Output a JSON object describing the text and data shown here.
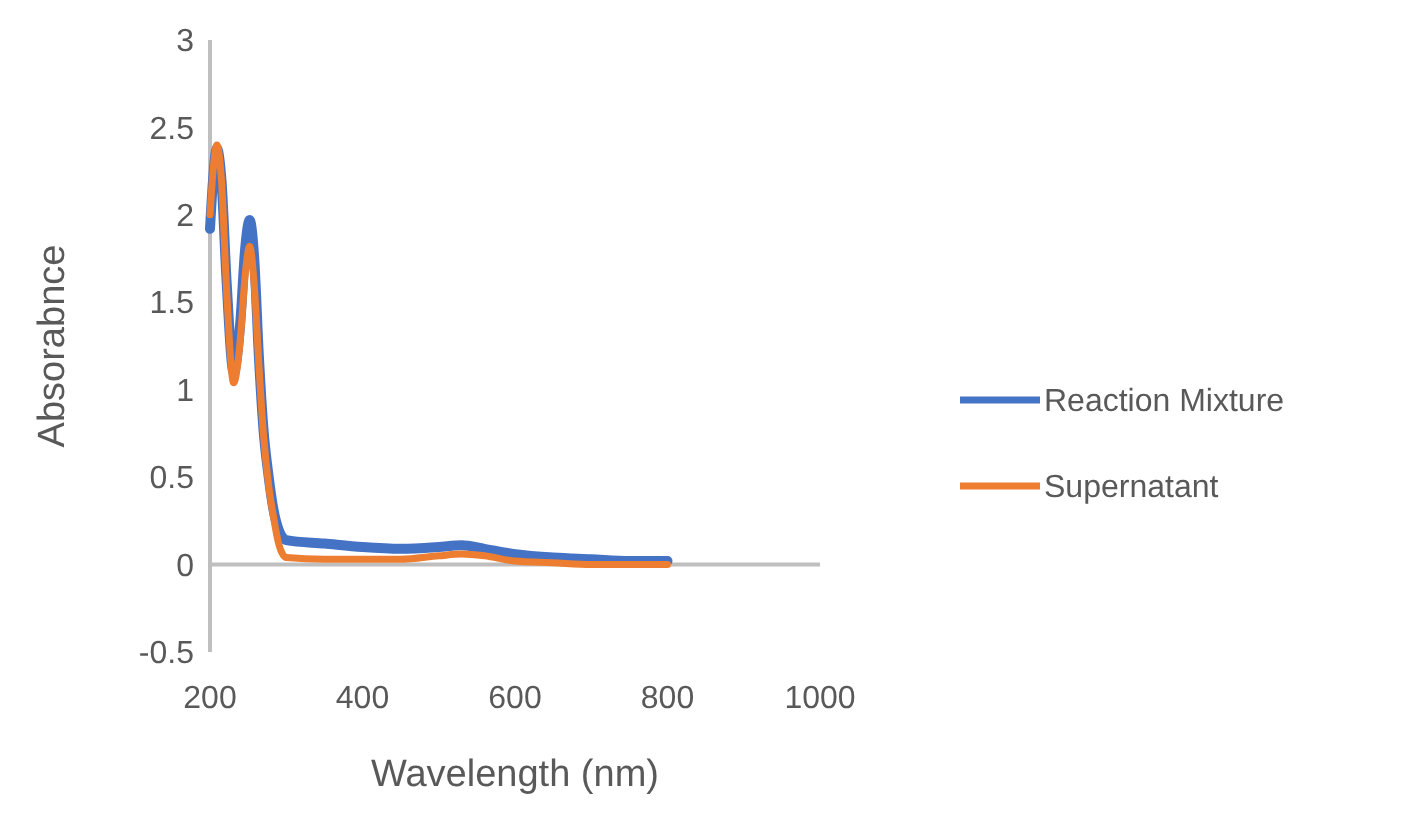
{
  "chart_data": {
    "type": "line",
    "xlabel": "Wavelength (nm)",
    "ylabel": "Absorabnce",
    "xlim": [
      200,
      1000
    ],
    "ylim": [
      -0.5,
      3
    ],
    "xticks": [
      200,
      400,
      600,
      800,
      1000
    ],
    "yticks": [
      -0.5,
      0,
      0.5,
      1,
      1.5,
      2,
      2.5,
      3
    ],
    "legend": "right",
    "marker": "none",
    "line_style": "solid",
    "series": [
      {
        "name": "Reaction Mixture",
        "color": "#4472c4",
        "x": [
          200,
          204,
          209,
          215,
          222,
          231,
          240,
          246,
          252,
          258,
          264,
          270,
          277,
          283,
          290,
          300,
          350,
          400,
          450,
          500,
          530,
          560,
          600,
          650,
          700,
          750,
          800
        ],
        "values": [
          1.92,
          2.2,
          2.38,
          2.2,
          1.6,
          1.1,
          1.4,
          1.8,
          1.97,
          1.75,
          1.2,
          0.78,
          0.5,
          0.32,
          0.2,
          0.14,
          0.12,
          0.1,
          0.09,
          0.1,
          0.11,
          0.09,
          0.06,
          0.04,
          0.03,
          0.02,
          0.02
        ]
      },
      {
        "name": "Supernatant",
        "color": "#ed7d31",
        "x": [
          200,
          204,
          209,
          215,
          222,
          231,
          240,
          246,
          252,
          258,
          264,
          270,
          277,
          283,
          290,
          300,
          350,
          400,
          450,
          500,
          530,
          560,
          600,
          650,
          700,
          750,
          800
        ],
        "values": [
          2.0,
          2.25,
          2.4,
          2.2,
          1.55,
          1.04,
          1.3,
          1.65,
          1.82,
          1.6,
          1.15,
          0.75,
          0.45,
          0.28,
          0.12,
          0.04,
          0.03,
          0.03,
          0.03,
          0.05,
          0.06,
          0.05,
          0.02,
          0.01,
          0.0,
          0.0,
          0.0
        ]
      }
    ]
  }
}
